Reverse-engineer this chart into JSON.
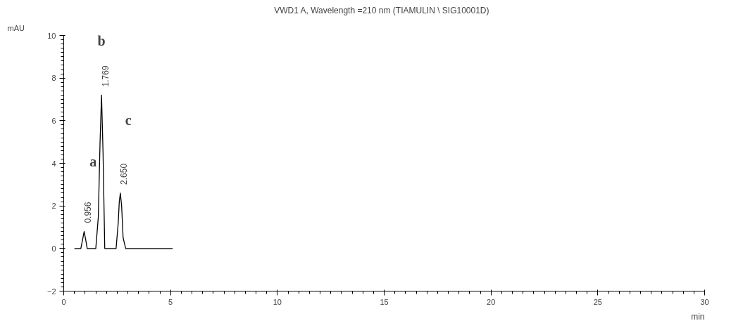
{
  "chart_data": {
    "type": "line",
    "title": "VWD1 A, Wavelength =210 nm (TIAMULIN   \\ SIG10001D)",
    "xlabel": "min",
    "ylabel": "mAU",
    "series": [
      {
        "color": "#000000",
        "x": [
          0.5,
          0.8,
          0.88,
          0.956,
          1.03,
          1.1,
          1.5,
          1.62,
          1.7,
          1.769,
          1.84,
          1.92,
          2.45,
          2.55,
          2.6,
          2.65,
          2.71,
          2.78,
          2.9,
          5.1
        ],
        "values": [
          0,
          0,
          0.4,
          0.8,
          0.4,
          0,
          0,
          1.5,
          5.0,
          7.2,
          4.5,
          0,
          0,
          1.2,
          2.2,
          2.6,
          2.0,
          0.5,
          0,
          0
        ]
      }
    ],
    "xlim": [
      0,
      30
    ],
    "ylim": [
      -2,
      10
    ],
    "xticks": [
      0,
      5,
      10,
      15,
      20,
      25,
      30
    ],
    "yticks": [
      -2,
      0,
      2,
      4,
      6,
      8,
      10
    ],
    "grid": false,
    "marker": "none",
    "line_style": "solid",
    "annotations": [
      {
        "text": "0.956",
        "x": 0.956,
        "y": 0.8
      },
      {
        "text": "1.769",
        "x": 1.769,
        "y": 7.2
      },
      {
        "text": "2.650",
        "x": 2.65,
        "y": 2.6
      },
      "a",
      "b",
      "c"
    ]
  }
}
